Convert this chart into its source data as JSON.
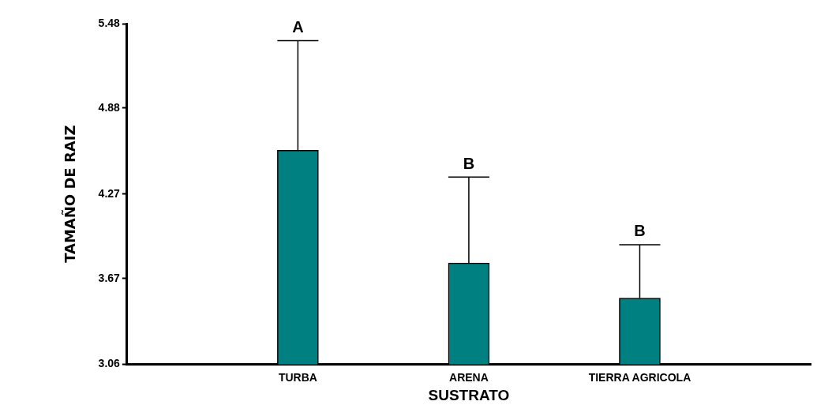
{
  "chart_data": {
    "type": "bar",
    "xlabel": "SUSTRATO",
    "ylabel": "TAMAÑO DE RAIZ",
    "categories": [
      null,
      "TURBA",
      "ARENA",
      "TIERRA AGRICOLA",
      null
    ],
    "values": [
      null,
      4.58,
      3.78,
      3.53,
      null
    ],
    "errors": [
      null,
      [
        4.58,
        5.36
      ],
      [
        3.78,
        4.39
      ],
      [
        3.53,
        3.91
      ],
      null
    ],
    "color": "#008080",
    "ylim": [
      3.06,
      5.48
    ],
    "yticks": [
      3.06,
      3.67,
      4.27,
      4.88,
      5.48
    ],
    "grid": false,
    "legend": false,
    "annotations": [
      "A",
      "B",
      "B"
    ]
  }
}
